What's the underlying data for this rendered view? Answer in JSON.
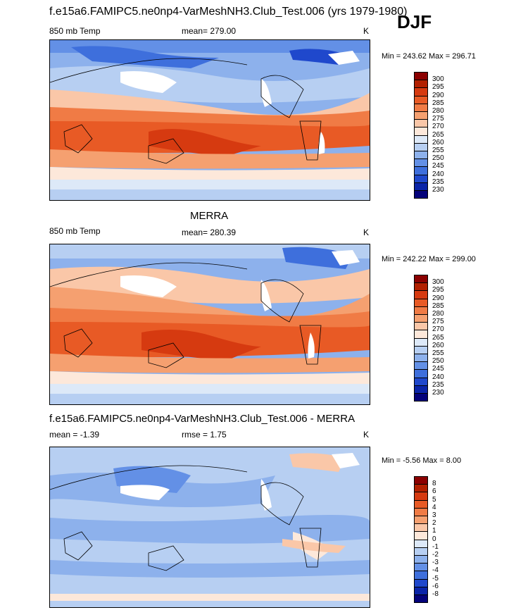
{
  "season": "DJF",
  "units": "K",
  "panels": [
    {
      "title": "f.e15a6.FAMIPC5.ne0np4-VarMeshNH3.Club_Test.006 (yrs 1979-1980)",
      "left_label": "850 mb Temp",
      "center_label": "mean= 279.00",
      "units": "K",
      "minmax": "Min = 243.62 Max = 296.71",
      "kind": "abs"
    },
    {
      "title": "MERRA",
      "left_label": "850 mb Temp",
      "center_label": "mean= 280.39",
      "units": "K",
      "minmax": "Min = 242.22 Max = 299.00",
      "kind": "abs"
    },
    {
      "title": "f.e15a6.FAMIPC5.ne0np4-VarMeshNH3.Club_Test.006 - MERRA",
      "left_label": "mean =  -1.39",
      "center_label": "rmse =   1.75",
      "units": "K",
      "minmax": "Min =  -5.56 Max =   8.00",
      "kind": "diff"
    }
  ],
  "colorbars": {
    "abs": {
      "labels": [
        "300",
        "295",
        "290",
        "285",
        "280",
        "275",
        "270",
        "265",
        "260",
        "255",
        "250",
        "245",
        "240",
        "235",
        "230"
      ],
      "colors": [
        "#8b0000",
        "#b22000",
        "#d63a10",
        "#e85a25",
        "#f07b45",
        "#f5a070",
        "#fac7a8",
        "#fde8da",
        "#dde9f8",
        "#b7cff2",
        "#8db1ec",
        "#6390e6",
        "#3e6fdc",
        "#1f48cc",
        "#0a24a8",
        "#04027a"
      ]
    },
    "diff": {
      "labels": [
        "8",
        "6",
        "5",
        "4",
        "3",
        "2",
        "1",
        "0",
        "-1",
        "-2",
        "-3",
        "-4",
        "-5",
        "-6",
        "-8"
      ],
      "colors": [
        "#8b0000",
        "#b22000",
        "#d63a10",
        "#e85a25",
        "#f07b45",
        "#f5a070",
        "#fac7a8",
        "#fde8da",
        "#dde9f8",
        "#b7cff2",
        "#8db1ec",
        "#6390e6",
        "#3e6fdc",
        "#1f48cc",
        "#0a24a8",
        "#04027a"
      ]
    }
  }
}
